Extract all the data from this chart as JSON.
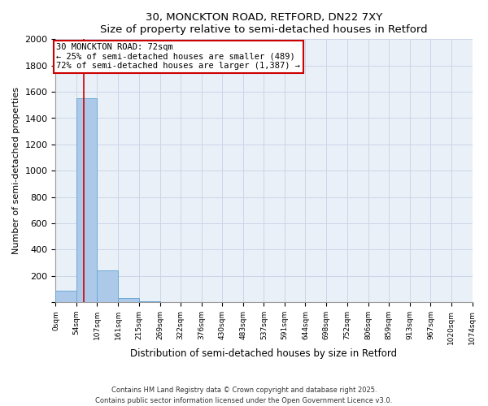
{
  "title_line1": "30, MONCKTON ROAD, RETFORD, DN22 7XY",
  "title_line2": "Size of property relative to semi-detached houses in Retford",
  "xlabel": "Distribution of semi-detached houses by size in Retford",
  "ylabel": "Number of semi-detached properties",
  "bin_edges": [
    0,
    54,
    107,
    161,
    215,
    269,
    322,
    376,
    430,
    483,
    537,
    591,
    644,
    698,
    752,
    806,
    859,
    913,
    967,
    1020,
    1074
  ],
  "bar_heights": [
    90,
    1550,
    240,
    35,
    5,
    0,
    0,
    0,
    0,
    0,
    0,
    0,
    0,
    0,
    0,
    0,
    0,
    0,
    0,
    0
  ],
  "bar_color": "#adc9e9",
  "bar_edge_color": "#6aaad4",
  "grid_color": "#ccd6e8",
  "bg_color": "#eaf0f8",
  "red_line_x": 72,
  "annotation_text": "30 MONCKTON ROAD: 72sqm\n← 25% of semi-detached houses are smaller (489)\n72% of semi-detached houses are larger (1,387) →",
  "annotation_box_color": "#cc0000",
  "ylim": [
    0,
    2000
  ],
  "yticks": [
    0,
    200,
    400,
    600,
    800,
    1000,
    1200,
    1400,
    1600,
    1800,
    2000
  ],
  "tick_labels": [
    "0sqm",
    "54sqm",
    "107sqm",
    "161sqm",
    "215sqm",
    "269sqm",
    "322sqm",
    "376sqm",
    "430sqm",
    "483sqm",
    "537sqm",
    "591sqm",
    "644sqm",
    "698sqm",
    "752sqm",
    "806sqm",
    "859sqm",
    "913sqm",
    "967sqm",
    "1020sqm",
    "1074sqm"
  ],
  "footnote_line1": "Contains HM Land Registry data © Crown copyright and database right 2025.",
  "footnote_line2": "Contains public sector information licensed under the Open Government Licence v3.0."
}
